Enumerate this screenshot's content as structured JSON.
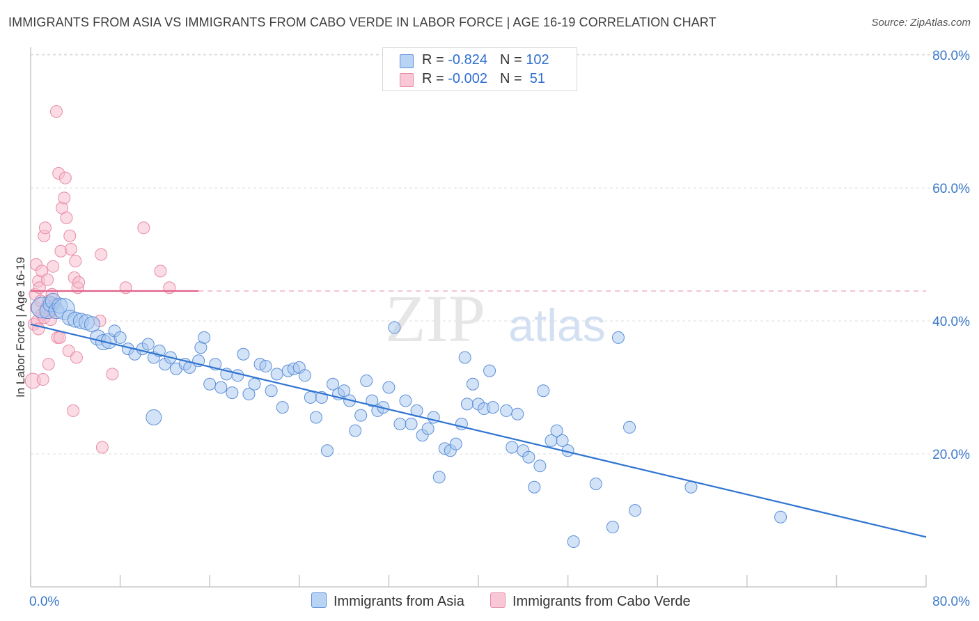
{
  "title": "IMMIGRANTS FROM ASIA VS IMMIGRANTS FROM CABO VERDE IN LABOR FORCE | AGE 16-19 CORRELATION CHART",
  "source": "Source: ZipAtlas.com",
  "watermark": {
    "zip": "ZIP",
    "atlas": "atlas"
  },
  "legend": {
    "rows": [
      {
        "r_label": "R = ",
        "r_value": "-0.824",
        "n_label": "N = ",
        "n_value": "102"
      },
      {
        "r_label": "R = ",
        "r_value": "-0.002",
        "n_label": "N = ",
        "n_value": " 51"
      }
    ]
  },
  "colors": {
    "asia_fill": "#a8c8f0",
    "asia_stroke": "#5b8ed8",
    "asia_line": "#2f74d0",
    "cabo_fill": "#f8c0d0",
    "cabo_stroke": "#e88aa6",
    "cabo_line": "#e0628a",
    "tick_label": "#3a78c9",
    "grid": "#dcdcdc"
  },
  "chart_data": {
    "type": "scatter",
    "title": "IMMIGRANTS FROM ASIA VS IMMIGRANTS FROM CABO VERDE IN LABOR FORCE | AGE 16-19 CORRELATION CHART",
    "xlabel": "",
    "ylabel": "In Labor Force | Age 16-19",
    "xlim": [
      0,
      80
    ],
    "ylim": [
      0,
      80
    ],
    "x_tick_labels": [
      "0.0%",
      "80.0%"
    ],
    "y_tick_labels": [
      "20.0%",
      "40.0%",
      "60.0%",
      "80.0%"
    ],
    "y_ticks": [
      20,
      40,
      60,
      80
    ],
    "grid": true,
    "legend_position": "top-center",
    "series": [
      {
        "name": "Immigrants from Asia",
        "R": -0.824,
        "N": 102,
        "trend": {
          "x": [
            0,
            80
          ],
          "y": [
            39.5,
            7.5
          ],
          "style": "solid"
        },
        "points": [
          [
            1.0,
            42.0,
            3
          ],
          [
            1.5,
            41.5,
            2
          ],
          [
            1.8,
            42.5,
            2
          ],
          [
            2.0,
            43.0,
            2
          ],
          [
            2.3,
            41.5,
            2
          ],
          [
            2.6,
            42.3,
            2
          ],
          [
            3.0,
            41.8,
            3
          ],
          [
            3.5,
            40.5,
            2
          ],
          [
            4.0,
            40.2,
            2
          ],
          [
            4.5,
            40.0,
            2
          ],
          [
            5.0,
            39.8,
            2
          ],
          [
            5.5,
            39.5,
            2
          ],
          [
            6.0,
            37.5,
            2
          ],
          [
            6.5,
            36.8,
            2
          ],
          [
            7.0,
            37.0,
            2
          ],
          [
            7.5,
            38.5,
            1
          ],
          [
            8.0,
            37.5,
            1
          ],
          [
            8.7,
            35.8,
            1
          ],
          [
            9.3,
            35.0,
            1
          ],
          [
            10.0,
            35.8,
            1
          ],
          [
            10.5,
            36.5,
            1
          ],
          [
            11.0,
            34.5,
            1
          ],
          [
            11.5,
            35.5,
            1
          ],
          [
            12.0,
            33.5,
            1
          ],
          [
            12.5,
            34.5,
            1
          ],
          [
            13.0,
            32.8,
            1
          ],
          [
            13.8,
            33.5,
            1
          ],
          [
            14.2,
            33.0,
            1
          ],
          [
            15.0,
            34.0,
            1
          ],
          [
            15.2,
            36.0,
            1
          ],
          [
            15.5,
            37.5,
            1
          ],
          [
            16.0,
            30.5,
            1
          ],
          [
            16.5,
            33.5,
            1
          ],
          [
            17.0,
            30.0,
            1
          ],
          [
            17.5,
            32.0,
            1
          ],
          [
            18.0,
            29.2,
            1
          ],
          [
            18.5,
            31.8,
            1
          ],
          [
            19.0,
            35.0,
            1
          ],
          [
            19.5,
            29.0,
            1
          ],
          [
            20.0,
            30.5,
            1
          ],
          [
            20.5,
            33.5,
            1
          ],
          [
            21.0,
            33.2,
            1
          ],
          [
            21.5,
            29.5,
            1
          ],
          [
            22.0,
            32.0,
            1
          ],
          [
            22.5,
            27.0,
            1
          ],
          [
            23.0,
            32.5,
            1
          ],
          [
            23.5,
            32.8,
            1
          ],
          [
            24.0,
            33.0,
            1
          ],
          [
            24.5,
            31.8,
            1
          ],
          [
            25.0,
            28.5,
            1
          ],
          [
            25.5,
            25.5,
            1
          ],
          [
            26.0,
            28.5,
            1
          ],
          [
            26.5,
            20.5,
            1
          ],
          [
            27.0,
            30.5,
            1
          ],
          [
            27.5,
            29.0,
            1
          ],
          [
            28.0,
            29.5,
            1
          ],
          [
            28.5,
            28.0,
            1
          ],
          [
            29.0,
            23.5,
            1
          ],
          [
            29.5,
            25.8,
            1
          ],
          [
            30.0,
            31.0,
            1
          ],
          [
            30.5,
            28.0,
            1
          ],
          [
            31.0,
            26.5,
            1
          ],
          [
            31.5,
            27.0,
            1
          ],
          [
            32.0,
            30.0,
            1
          ],
          [
            32.5,
            39.0,
            1
          ],
          [
            33.0,
            24.5,
            1
          ],
          [
            33.5,
            28.0,
            1
          ],
          [
            34.0,
            24.5,
            1
          ],
          [
            34.5,
            26.5,
            1
          ],
          [
            35.0,
            22.8,
            1
          ],
          [
            35.5,
            23.8,
            1
          ],
          [
            36.0,
            25.5,
            1
          ],
          [
            36.5,
            16.5,
            1
          ],
          [
            37.0,
            20.8,
            1
          ],
          [
            37.5,
            20.5,
            1
          ],
          [
            38.0,
            21.5,
            1
          ],
          [
            38.5,
            24.5,
            1
          ],
          [
            38.8,
            34.5,
            1
          ],
          [
            39.0,
            27.5,
            1
          ],
          [
            39.5,
            30.5,
            1
          ],
          [
            40.0,
            27.5,
            1
          ],
          [
            40.5,
            26.8,
            1
          ],
          [
            41.0,
            32.5,
            1
          ],
          [
            41.3,
            27.0,
            1
          ],
          [
            42.5,
            26.5,
            1
          ],
          [
            43.0,
            21.0,
            1
          ],
          [
            43.5,
            26.0,
            1
          ],
          [
            44.0,
            20.5,
            1
          ],
          [
            44.5,
            19.5,
            1
          ],
          [
            45.0,
            15.0,
            1
          ],
          [
            45.5,
            18.2,
            1
          ],
          [
            45.8,
            29.5,
            1
          ],
          [
            46.5,
            22.0,
            1
          ],
          [
            47.0,
            23.5,
            1
          ],
          [
            47.5,
            22.0,
            1
          ],
          [
            48.0,
            20.5,
            1
          ],
          [
            48.5,
            6.8,
            1
          ],
          [
            50.5,
            15.5,
            1
          ],
          [
            52.0,
            9.0,
            1
          ],
          [
            52.5,
            37.5,
            1
          ],
          [
            53.5,
            24.0,
            1
          ],
          [
            54.0,
            11.5,
            1
          ],
          [
            59.0,
            15.0,
            1
          ],
          [
            67.0,
            10.5,
            1
          ],
          [
            11.0,
            25.5,
            2
          ]
        ]
      },
      {
        "name": "Immigrants from Cabo Verde",
        "R": -0.002,
        "N": 51,
        "trend": {
          "x": [
            0,
            80
          ],
          "y": [
            44.5,
            44.5
          ],
          "solid_until": 15
        },
        "points": [
          [
            0.2,
            31.0,
            2
          ],
          [
            0.3,
            39.5,
            1
          ],
          [
            0.4,
            44.0,
            1
          ],
          [
            0.5,
            48.5,
            1
          ],
          [
            0.5,
            42.0,
            1
          ],
          [
            0.6,
            40.0,
            1
          ],
          [
            0.7,
            46.0,
            1
          ],
          [
            0.7,
            38.8,
            1
          ],
          [
            0.8,
            45.0,
            1
          ],
          [
            0.9,
            43.0,
            1
          ],
          [
            1.0,
            41.0,
            1
          ],
          [
            1.0,
            47.5,
            1
          ],
          [
            1.1,
            31.2,
            1
          ],
          [
            1.2,
            40.5,
            1
          ],
          [
            1.2,
            52.8,
            1
          ],
          [
            1.3,
            54.0,
            1
          ],
          [
            1.4,
            42.0,
            1
          ],
          [
            1.5,
            46.2,
            1
          ],
          [
            1.6,
            33.5,
            1
          ],
          [
            1.6,
            43.0,
            1
          ],
          [
            1.7,
            41.2,
            1
          ],
          [
            1.8,
            40.2,
            1
          ],
          [
            1.9,
            44.0,
            1
          ],
          [
            2.0,
            48.2,
            1
          ],
          [
            2.2,
            42.5,
            1
          ],
          [
            2.3,
            71.5,
            1
          ],
          [
            2.4,
            37.5,
            1
          ],
          [
            2.5,
            62.2,
            1
          ],
          [
            2.6,
            37.5,
            1
          ],
          [
            2.7,
            50.5,
            1
          ],
          [
            2.8,
            57.0,
            1
          ],
          [
            3.0,
            58.5,
            1
          ],
          [
            3.1,
            61.5,
            1
          ],
          [
            3.2,
            55.5,
            1
          ],
          [
            3.4,
            35.5,
            1
          ],
          [
            3.5,
            52.8,
            1
          ],
          [
            3.6,
            50.8,
            1
          ],
          [
            3.8,
            26.5,
            1
          ],
          [
            3.9,
            46.5,
            1
          ],
          [
            4.0,
            49.0,
            1
          ],
          [
            4.1,
            34.5,
            1
          ],
          [
            4.2,
            45.0,
            1
          ],
          [
            4.3,
            45.8,
            1
          ],
          [
            6.2,
            40.0,
            1
          ],
          [
            6.3,
            50.0,
            1
          ],
          [
            6.4,
            21.0,
            1
          ],
          [
            7.3,
            32.0,
            1
          ],
          [
            8.5,
            45.0,
            1
          ],
          [
            10.1,
            54.0,
            1
          ],
          [
            11.6,
            47.5,
            1
          ],
          [
            12.4,
            45.0,
            1
          ]
        ]
      }
    ]
  }
}
